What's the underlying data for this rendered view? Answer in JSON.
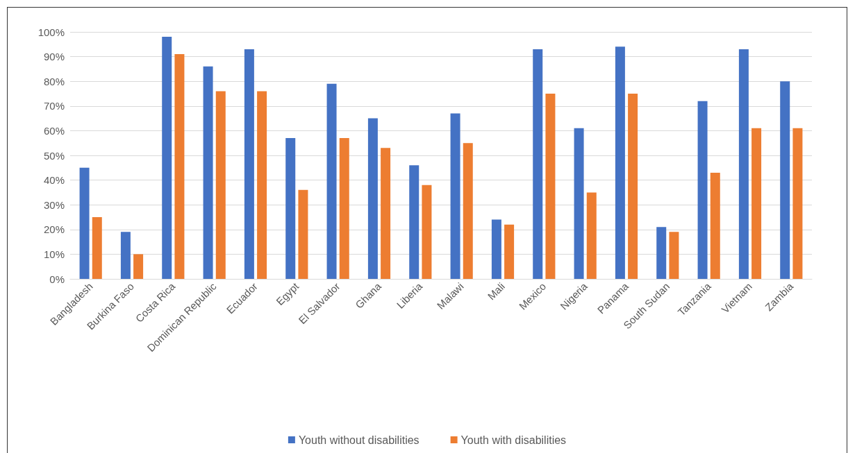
{
  "chart_data": {
    "type": "bar",
    "categories": [
      "Bangladesh",
      "Burkina Faso",
      "Costa Rica",
      "Dominican Republic",
      "Ecuador",
      "Egypt",
      "El Salvador",
      "Ghana",
      "Liberia",
      "Malawi",
      "Mali",
      "Mexico",
      "Nigeria",
      "Panama",
      "South Sudan",
      "Tanzania",
      "Vietnam",
      "Zambia"
    ],
    "series": [
      {
        "name": "Youth without disabilities",
        "color": "#4472c4",
        "values": [
          45,
          19,
          98,
          86,
          93,
          57,
          79,
          65,
          46,
          67,
          24,
          93,
          61,
          94,
          21,
          72,
          93,
          80
        ]
      },
      {
        "name": "Youth with disabilities",
        "color": "#ed7d31",
        "values": [
          25,
          10,
          91,
          76,
          76,
          36,
          57,
          53,
          38,
          55,
          22,
          75,
          35,
          75,
          19,
          43,
          61,
          61
        ]
      }
    ],
    "ylim": [
      0,
      100
    ],
    "yticks": [
      {
        "value": 0,
        "label": "0%"
      },
      {
        "value": 10,
        "label": "10%"
      },
      {
        "value": 20,
        "label": "20%"
      },
      {
        "value": 30,
        "label": "30%"
      },
      {
        "value": 40,
        "label": "40%"
      },
      {
        "value": 50,
        "label": "50%"
      },
      {
        "value": 60,
        "label": "60%"
      },
      {
        "value": 70,
        "label": "70%"
      },
      {
        "value": 80,
        "label": "80%"
      },
      {
        "value": 90,
        "label": "90%"
      },
      {
        "value": 100,
        "label": "100%"
      }
    ],
    "grid": "y",
    "legend": "bottom"
  }
}
